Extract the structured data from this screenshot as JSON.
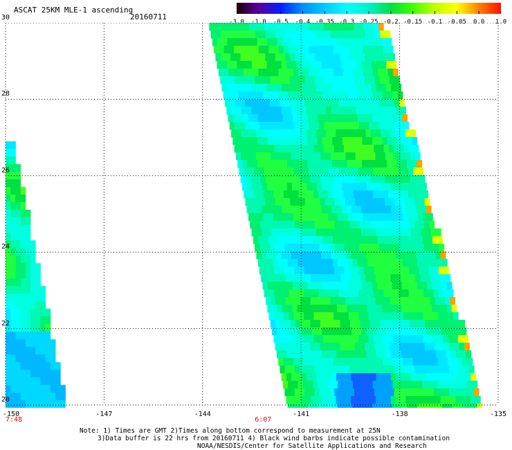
{
  "header": {
    "title": "ASCAT 25KM MLE-1 ascending",
    "date": "20160711"
  },
  "colorbar": {
    "labels": [
      "-3.0",
      "-1.0",
      "-0.5",
      "-0.4",
      "-0.35",
      "-0.3",
      "-0.25",
      "-0.2",
      "-0.15",
      "-0.1",
      "-0.05",
      "0.0",
      "1.0"
    ],
    "colors": [
      "#1a0000",
      "#5a00a0",
      "#0020ff",
      "#0090ff",
      "#00c8ff",
      "#00ffff",
      "#00f0c8",
      "#00e040",
      "#40ff00",
      "#c0ff00",
      "#ffff00",
      "#ff8000",
      "#ff1000"
    ]
  },
  "map": {
    "y_ticks": [
      "30",
      "28",
      "26",
      "24",
      "22",
      "20"
    ],
    "x_ticks": [
      "-150",
      "-147",
      "-144",
      "-141",
      "-138",
      "-135"
    ],
    "times": [
      "7:48",
      "6:07"
    ],
    "gridlines": "dotted"
  },
  "notes": {
    "line1": "Note: 1) Times are GMT 2)Times along bottom correspond to measurement at 25N",
    "line2": "3)Data buffer is 22 hrs from 20160711 4) Black wind barbs indicate possible contamination",
    "line3": "NOAA/NESDIS/Center for Satellite Applications and Research"
  }
}
